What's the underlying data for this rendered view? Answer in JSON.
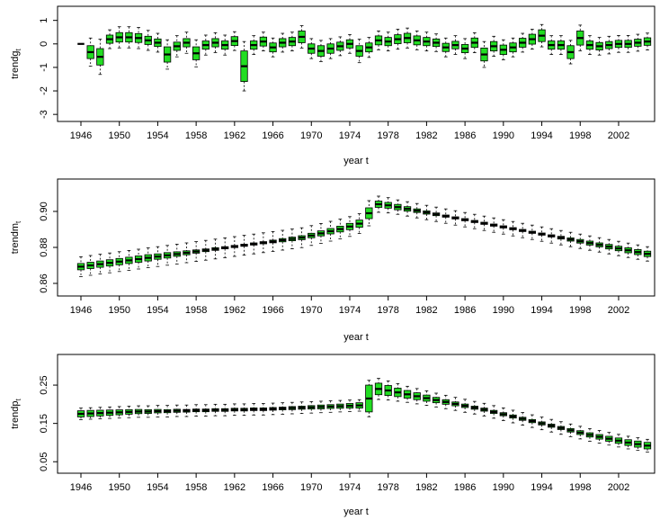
{
  "chart_data": [
    {
      "type": "boxplot",
      "ylabel": "trendg",
      "ylabel_sub": "t",
      "xlabel": "year t",
      "ylim": [
        -3.3,
        1.6
      ],
      "yticks": [
        -3,
        -2,
        -1,
        0,
        1
      ],
      "ytick_labels": [
        "-3",
        "-2",
        "-1",
        "0",
        "1"
      ],
      "grid": false,
      "box_fill": "#22dd22",
      "years": [
        1946,
        1947,
        1948,
        1949,
        1950,
        1951,
        1952,
        1953,
        1954,
        1955,
        1956,
        1957,
        1958,
        1959,
        1960,
        1961,
        1962,
        1963,
        1964,
        1965,
        1966,
        1967,
        1968,
        1969,
        1970,
        1971,
        1972,
        1973,
        1974,
        1975,
        1976,
        1977,
        1978,
        1979,
        1980,
        1981,
        1982,
        1983,
        1984,
        1985,
        1986,
        1987,
        1988,
        1989,
        1990,
        1991,
        1992,
        1993,
        1994,
        1995,
        1996,
        1997,
        1998,
        1999,
        2000,
        2001,
        2002,
        2003,
        2004,
        2005
      ],
      "xtick_labels": [
        "1946",
        "1950",
        "1954",
        "1958",
        "1962",
        "1966",
        "1970",
        "1974",
        "1978",
        "1982",
        "1986",
        "1990",
        "1994",
        "1998",
        "2002"
      ],
      "medians": [
        0.0,
        -0.35,
        -0.55,
        0.2,
        0.28,
        0.28,
        0.25,
        0.15,
        0.05,
        -0.45,
        -0.1,
        0.05,
        -0.4,
        -0.05,
        0.05,
        -0.05,
        0.12,
        -0.95,
        -0.05,
        0.1,
        -0.15,
        0.05,
        0.1,
        0.3,
        -0.2,
        -0.3,
        -0.2,
        -0.1,
        0.0,
        -0.3,
        -0.15,
        0.15,
        0.1,
        0.2,
        0.25,
        0.15,
        0.1,
        0.05,
        -0.15,
        -0.05,
        -0.2,
        0.05,
        -0.45,
        -0.1,
        -0.25,
        -0.15,
        0.05,
        0.2,
        0.35,
        -0.05,
        -0.05,
        -0.35,
        0.25,
        -0.05,
        -0.1,
        -0.05,
        0.0,
        0.0,
        0.05,
        0.1
      ],
      "iqr": [
        0.0,
        0.55,
        0.7,
        0.35,
        0.4,
        0.4,
        0.38,
        0.35,
        0.32,
        0.65,
        0.35,
        0.35,
        0.55,
        0.35,
        0.35,
        0.35,
        0.38,
        1.3,
        0.35,
        0.38,
        0.38,
        0.35,
        0.35,
        0.5,
        0.4,
        0.45,
        0.4,
        0.35,
        0.35,
        0.45,
        0.38,
        0.38,
        0.35,
        0.38,
        0.4,
        0.38,
        0.35,
        0.32,
        0.35,
        0.32,
        0.35,
        0.4,
        0.55,
        0.4,
        0.4,
        0.38,
        0.38,
        0.42,
        0.5,
        0.35,
        0.35,
        0.55,
        0.6,
        0.35,
        0.32,
        0.3,
        0.3,
        0.3,
        0.3,
        0.32
      ],
      "whisker": [
        0.0,
        1.2,
        1.5,
        0.8,
        0.9,
        0.9,
        0.9,
        0.85,
        0.8,
        1.25,
        0.9,
        0.9,
        1.15,
        0.85,
        0.85,
        0.85,
        0.8,
        2.1,
        0.8,
        0.8,
        0.8,
        0.8,
        0.8,
        0.95,
        0.85,
        0.9,
        0.85,
        0.8,
        0.8,
        1.0,
        0.85,
        0.8,
        0.8,
        0.85,
        0.85,
        0.8,
        0.8,
        0.75,
        0.8,
        0.8,
        0.85,
        0.85,
        1.1,
        0.85,
        0.85,
        0.8,
        0.8,
        0.85,
        0.95,
        0.8,
        0.8,
        1.0,
        1.1,
        0.8,
        0.75,
        0.75,
        0.72,
        0.72,
        0.72,
        0.72
      ]
    },
    {
      "type": "boxplot",
      "ylabel": "trendm",
      "ylabel_sub": "t",
      "xlabel": "year t",
      "ylim": [
        0.853,
        0.918
      ],
      "yticks": [
        0.86,
        0.88,
        0.9
      ],
      "ytick_labels": [
        "0.86",
        "0.88",
        "0.90"
      ],
      "grid": false,
      "box_fill": "#22dd22",
      "years": [
        1946,
        1947,
        1948,
        1949,
        1950,
        1951,
        1952,
        1953,
        1954,
        1955,
        1956,
        1957,
        1958,
        1959,
        1960,
        1961,
        1962,
        1963,
        1964,
        1965,
        1966,
        1967,
        1968,
        1969,
        1970,
        1971,
        1972,
        1973,
        1974,
        1975,
        1976,
        1977,
        1978,
        1979,
        1980,
        1981,
        1982,
        1983,
        1984,
        1985,
        1986,
        1987,
        1988,
        1989,
        1990,
        1991,
        1992,
        1993,
        1994,
        1995,
        1996,
        1997,
        1998,
        1999,
        2000,
        2001,
        2002,
        2003,
        2004,
        2005
      ],
      "xtick_labels": [
        "1946",
        "1950",
        "1954",
        "1958",
        "1962",
        "1966",
        "1970",
        "1974",
        "1978",
        "1982",
        "1986",
        "1990",
        "1994",
        "1998",
        "2002"
      ],
      "medians": [
        0.8693,
        0.87,
        0.8707,
        0.8714,
        0.8721,
        0.8728,
        0.8735,
        0.8742,
        0.8749,
        0.8756,
        0.8763,
        0.877,
        0.8777,
        0.8784,
        0.8791,
        0.8798,
        0.8805,
        0.8812,
        0.8819,
        0.8826,
        0.8833,
        0.884,
        0.8847,
        0.8854,
        0.8866,
        0.8878,
        0.889,
        0.8902,
        0.8916,
        0.8932,
        0.899,
        0.904,
        0.9034,
        0.9024,
        0.9014,
        0.9004,
        0.8994,
        0.8984,
        0.8974,
        0.8964,
        0.8954,
        0.8944,
        0.8934,
        0.8924,
        0.8914,
        0.8904,
        0.8894,
        0.8884,
        0.8874,
        0.8864,
        0.8854,
        0.8844,
        0.8834,
        0.8824,
        0.8814,
        0.8804,
        0.8794,
        0.8784,
        0.8774,
        0.8764
      ],
      "iqr": [
        0.0035,
        0.0035,
        0.0035,
        0.0035,
        0.0035,
        0.0035,
        0.0035,
        0.0035,
        0.003,
        0.003,
        0.0025,
        0.0022,
        0.0018,
        0.0015,
        0.0015,
        0.0012,
        0.0012,
        0.0012,
        0.0012,
        0.0012,
        0.0015,
        0.0018,
        0.002,
        0.0022,
        0.0025,
        0.0028,
        0.003,
        0.0032,
        0.0035,
        0.004,
        0.006,
        0.0035,
        0.0032,
        0.003,
        0.0025,
        0.002,
        0.0018,
        0.0015,
        0.0012,
        0.0012,
        0.0012,
        0.0012,
        0.0012,
        0.0012,
        0.0012,
        0.0012,
        0.0012,
        0.0012,
        0.0012,
        0.0012,
        0.0015,
        0.0018,
        0.002,
        0.0022,
        0.0022,
        0.0025,
        0.0025,
        0.0028,
        0.0028,
        0.003
      ],
      "whisker": [
        0.011,
        0.011,
        0.011,
        0.011,
        0.011,
        0.011,
        0.011,
        0.011,
        0.011,
        0.011,
        0.011,
        0.011,
        0.011,
        0.011,
        0.011,
        0.011,
        0.011,
        0.011,
        0.011,
        0.011,
        0.011,
        0.011,
        0.011,
        0.011,
        0.011,
        0.011,
        0.011,
        0.011,
        0.011,
        0.011,
        0.014,
        0.009,
        0.0085,
        0.008,
        0.008,
        0.008,
        0.008,
        0.008,
        0.008,
        0.008,
        0.008,
        0.008,
        0.008,
        0.008,
        0.008,
        0.008,
        0.008,
        0.008,
        0.008,
        0.008,
        0.008,
        0.008,
        0.008,
        0.008,
        0.008,
        0.008,
        0.008,
        0.008,
        0.008,
        0.008
      ]
    },
    {
      "type": "boxplot",
      "ylabel": "trendp",
      "ylabel_sub": "t",
      "xlabel": "year t",
      "ylim": [
        0.02,
        0.33
      ],
      "yticks": [
        0.05,
        0.15,
        0.25
      ],
      "ytick_labels": [
        "0.05",
        "0.15",
        "0.25"
      ],
      "grid": false,
      "box_fill": "#22dd22",
      "years": [
        1946,
        1947,
        1948,
        1949,
        1950,
        1951,
        1952,
        1953,
        1954,
        1955,
        1956,
        1957,
        1958,
        1959,
        1960,
        1961,
        1962,
        1963,
        1964,
        1965,
        1966,
        1967,
        1968,
        1969,
        1970,
        1971,
        1972,
        1973,
        1974,
        1975,
        1976,
        1977,
        1978,
        1979,
        1980,
        1981,
        1982,
        1983,
        1984,
        1985,
        1986,
        1987,
        1988,
        1989,
        1990,
        1991,
        1992,
        1993,
        1994,
        1995,
        1996,
        1997,
        1998,
        1999,
        2000,
        2001,
        2002,
        2003,
        2004,
        2005
      ],
      "xtick_labels": [
        "1946",
        "1950",
        "1954",
        "1958",
        "1962",
        "1966",
        "1970",
        "1974",
        "1978",
        "1982",
        "1986",
        "1990",
        "1994",
        "1998",
        "2002"
      ],
      "medians": [
        0.175,
        0.176,
        0.177,
        0.178,
        0.179,
        0.18,
        0.181,
        0.181,
        0.182,
        0.182,
        0.183,
        0.183,
        0.184,
        0.184,
        0.185,
        0.185,
        0.186,
        0.186,
        0.187,
        0.187,
        0.188,
        0.189,
        0.19,
        0.191,
        0.192,
        0.193,
        0.194,
        0.195,
        0.196,
        0.197,
        0.215,
        0.24,
        0.236,
        0.231,
        0.226,
        0.221,
        0.216,
        0.211,
        0.206,
        0.201,
        0.196,
        0.191,
        0.186,
        0.18,
        0.174,
        0.168,
        0.162,
        0.156,
        0.15,
        0.144,
        0.138,
        0.132,
        0.126,
        0.12,
        0.115,
        0.11,
        0.105,
        0.1,
        0.096,
        0.092
      ],
      "iqr": [
        0.016,
        0.016,
        0.015,
        0.014,
        0.013,
        0.012,
        0.011,
        0.01,
        0.009,
        0.008,
        0.008,
        0.007,
        0.007,
        0.007,
        0.007,
        0.007,
        0.007,
        0.007,
        0.007,
        0.007,
        0.007,
        0.007,
        0.008,
        0.008,
        0.009,
        0.01,
        0.01,
        0.011,
        0.012,
        0.014,
        0.07,
        0.03,
        0.026,
        0.022,
        0.02,
        0.018,
        0.016,
        0.014,
        0.012,
        0.01,
        0.009,
        0.008,
        0.008,
        0.008,
        0.008,
        0.008,
        0.008,
        0.008,
        0.008,
        0.008,
        0.008,
        0.009,
        0.01,
        0.011,
        0.012,
        0.013,
        0.014,
        0.015,
        0.016,
        0.017
      ],
      "whisker": [
        0.03,
        0.03,
        0.03,
        0.03,
        0.03,
        0.03,
        0.03,
        0.03,
        0.03,
        0.03,
        0.03,
        0.03,
        0.03,
        0.03,
        0.03,
        0.03,
        0.03,
        0.03,
        0.03,
        0.03,
        0.03,
        0.03,
        0.03,
        0.03,
        0.03,
        0.03,
        0.03,
        0.03,
        0.03,
        0.03,
        0.095,
        0.055,
        0.05,
        0.046,
        0.042,
        0.04,
        0.038,
        0.036,
        0.035,
        0.034,
        0.034,
        0.033,
        0.033,
        0.033,
        0.033,
        0.033,
        0.033,
        0.033,
        0.033,
        0.033,
        0.033,
        0.033,
        0.033,
        0.033,
        0.033,
        0.033,
        0.033,
        0.033,
        0.033,
        0.033
      ]
    }
  ]
}
